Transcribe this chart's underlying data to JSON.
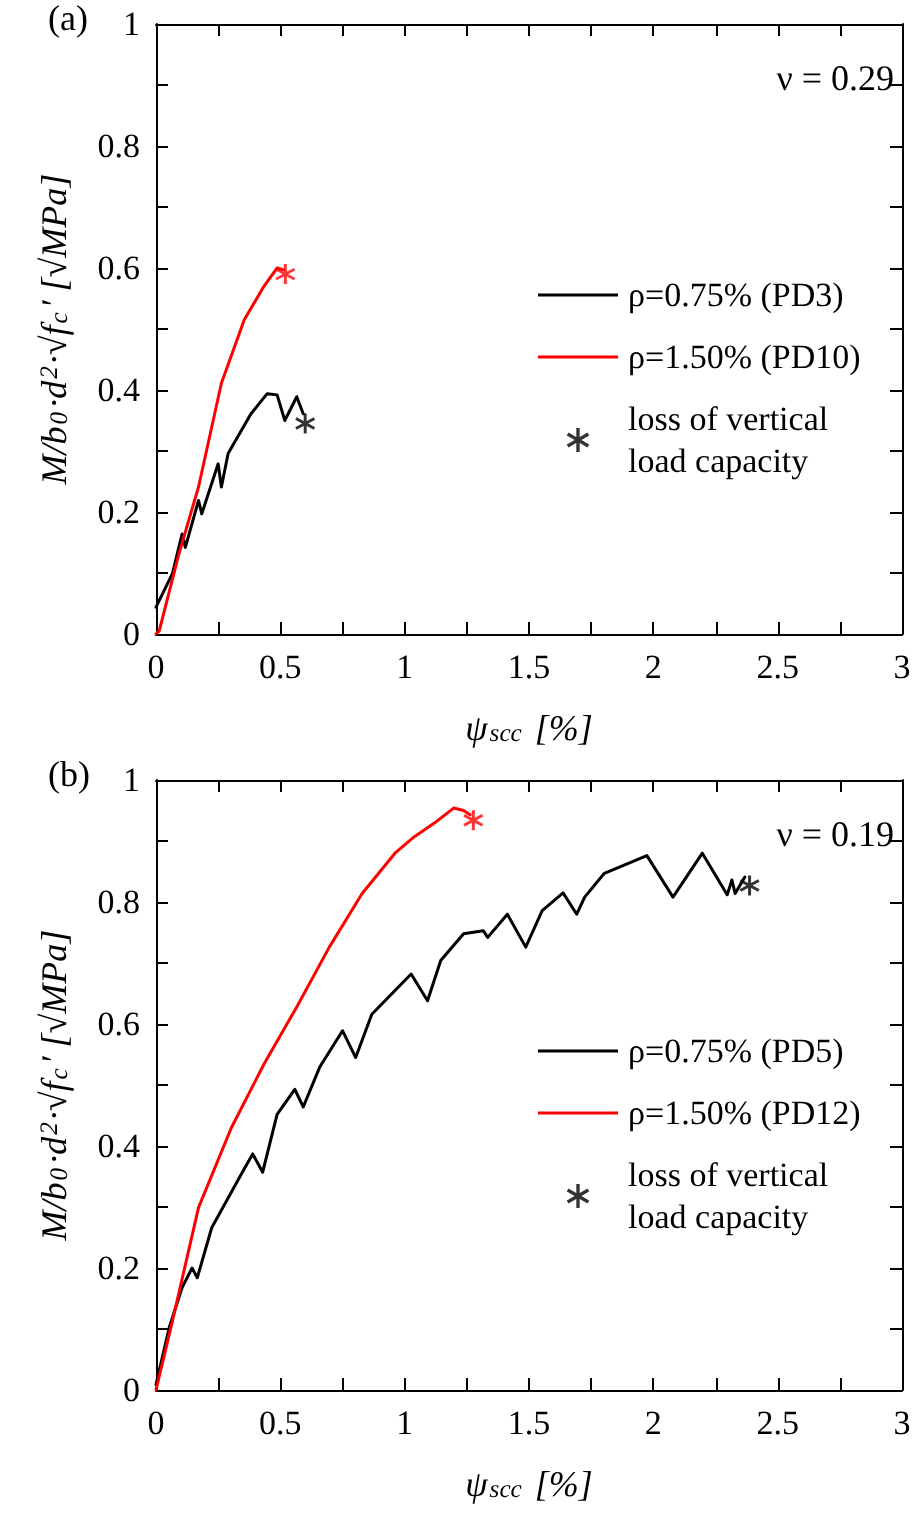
{
  "chart_data": [
    {
      "type": "line",
      "title": "(a)",
      "xlabel": "ψ$_{scc}$ [%]",
      "ylabel": "M/b$_{0}$·d$^{2}$·√f$_{c}$′ [√MPa]",
      "xlim": [
        0,
        3
      ],
      "ylim": [
        0,
        1
      ],
      "xticks": [
        0,
        {
          "value": 0.25,
          "label": null
        },
        0.5,
        {
          "value": 0.75,
          "label": null
        },
        1,
        {
          "value": 1.25,
          "label": null
        },
        1.5,
        {
          "value": 1.75,
          "label": null
        },
        2,
        {
          "value": 2.25,
          "label": null
        },
        2.5,
        {
          "value": 2.75,
          "label": null
        },
        3
      ],
      "yticks": [
        0,
        {
          "value": 0.1,
          "label": null
        },
        0.2,
        {
          "value": 0.3,
          "label": null
        },
        0.4,
        {
          "value": 0.5,
          "label": null
        },
        0.6,
        {
          "value": 0.7,
          "label": null
        },
        0.8,
        {
          "value": 0.9,
          "label": null
        },
        1
      ],
      "grid": false,
      "legend": "right",
      "marker": "none",
      "line_style": "solid",
      "annotations": [
        "ν = 0.29"
      ],
      "series": [
        {
          "name": "ρ=0.75% (PD3)",
          "color": "#000000",
          "x": [
            0,
            0.066,
            0.105,
            0.118,
            0.171,
            0.184,
            0.25,
            0.263,
            0.29,
            0.382,
            0.447,
            0.487,
            0.518,
            0.566,
            0.592
          ],
          "values": [
            0.044,
            0.099,
            0.164,
            0.142,
            0.219,
            0.197,
            0.279,
            0.241,
            0.296,
            0.361,
            0.394,
            0.392,
            0.35,
            0.389,
            0.361
          ]
        },
        {
          "name": "ρ=1.50% (PD10)",
          "color": "#ff0000",
          "x": [
            0,
            0.013,
            0.092,
            0.171,
            0.263,
            0.355,
            0.434,
            0.487,
            0.513
          ],
          "values": [
            0,
            0.005,
            0.131,
            0.241,
            0.411,
            0.515,
            0.57,
            0.6,
            0.597
          ]
        },
        {
          "type": "scatter",
          "marker": "cross",
          "name": "loss of vertical load capacity",
          "color": "#000000",
          "colors": [
            "#000000",
            "#ff0000"
          ],
          "x": [
            0.6,
            0.52
          ],
          "values": [
            0.345,
            0.59
          ]
        }
      ]
    },
    {
      "type": "line",
      "title": "(b)",
      "xlabel": "ψ$_{scc}$ [%]",
      "ylabel": "M/b$_{0}$·d$^{2}$·√f$_{c}$′ [√MPa]",
      "xlim": [
        0,
        3
      ],
      "ylim": [
        0,
        1
      ],
      "xticks": [
        0,
        {
          "value": 0.25,
          "label": null
        },
        0.5,
        {
          "value": 0.75,
          "label": null
        },
        1,
        {
          "value": 1.25,
          "label": null
        },
        1.5,
        {
          "value": 1.75,
          "label": null
        },
        2,
        {
          "value": 2.25,
          "label": null
        },
        2.5,
        {
          "value": 2.75,
          "label": null
        },
        3
      ],
      "yticks": [
        0,
        {
          "value": 0.1,
          "label": null
        },
        0.2,
        {
          "value": 0.3,
          "label": null
        },
        0.4,
        {
          "value": 0.5,
          "label": null
        },
        0.6,
        {
          "value": 0.7,
          "label": null
        },
        0.8,
        {
          "value": 0.9,
          "label": null
        },
        1
      ],
      "grid": false,
      "legend": "right",
      "marker": "none",
      "line_style": "solid",
      "annotations": [
        "ν = 0.19"
      ],
      "series": [
        {
          "name": "ρ=0.75% (PD5)",
          "color": "#000000",
          "x": [
            0,
            0.053,
            0.105,
            0.145,
            0.166,
            0.224,
            0.35,
            0.389,
            0.429,
            0.487,
            0.558,
            0.592,
            0.658,
            0.75,
            0.803,
            0.868,
            1.026,
            1.092,
            1.145,
            1.237,
            1.316,
            1.334,
            1.413,
            1.487,
            1.553,
            1.637,
            1.692,
            1.724,
            1.803,
            1.974,
            2.079,
            2.197,
            2.297,
            2.316,
            2.329,
            2.368
          ],
          "values": [
            0.009,
            0.102,
            0.168,
            0.2,
            0.184,
            0.266,
            0.359,
            0.387,
            0.357,
            0.452,
            0.493,
            0.464,
            0.529,
            0.589,
            0.545,
            0.616,
            0.682,
            0.638,
            0.704,
            0.748,
            0.753,
            0.742,
            0.78,
            0.726,
            0.786,
            0.815,
            0.78,
            0.808,
            0.847,
            0.876,
            0.808,
            0.88,
            0.812,
            0.836,
            0.814,
            0.841
          ]
        },
        {
          "name": "ρ=1.50% (PD12)",
          "color": "#ff0000",
          "x": [
            0,
            0.066,
            0.171,
            0.303,
            0.434,
            0.566,
            0.697,
            0.829,
            0.961,
            1.039,
            1.118,
            1.197,
            1.237,
            1.263
          ],
          "values": [
            0,
            0.113,
            0.299,
            0.43,
            0.534,
            0.628,
            0.726,
            0.814,
            0.88,
            0.907,
            0.929,
            0.954,
            0.95,
            0.943
          ]
        },
        {
          "type": "scatter",
          "marker": "cross",
          "name": "loss of vertical load capacity",
          "color": "#000000",
          "colors": [
            "#000000",
            "#ff0000"
          ],
          "x": [
            2.387,
            1.276
          ],
          "values": [
            0.827,
            0.934
          ]
        }
      ]
    }
  ]
}
